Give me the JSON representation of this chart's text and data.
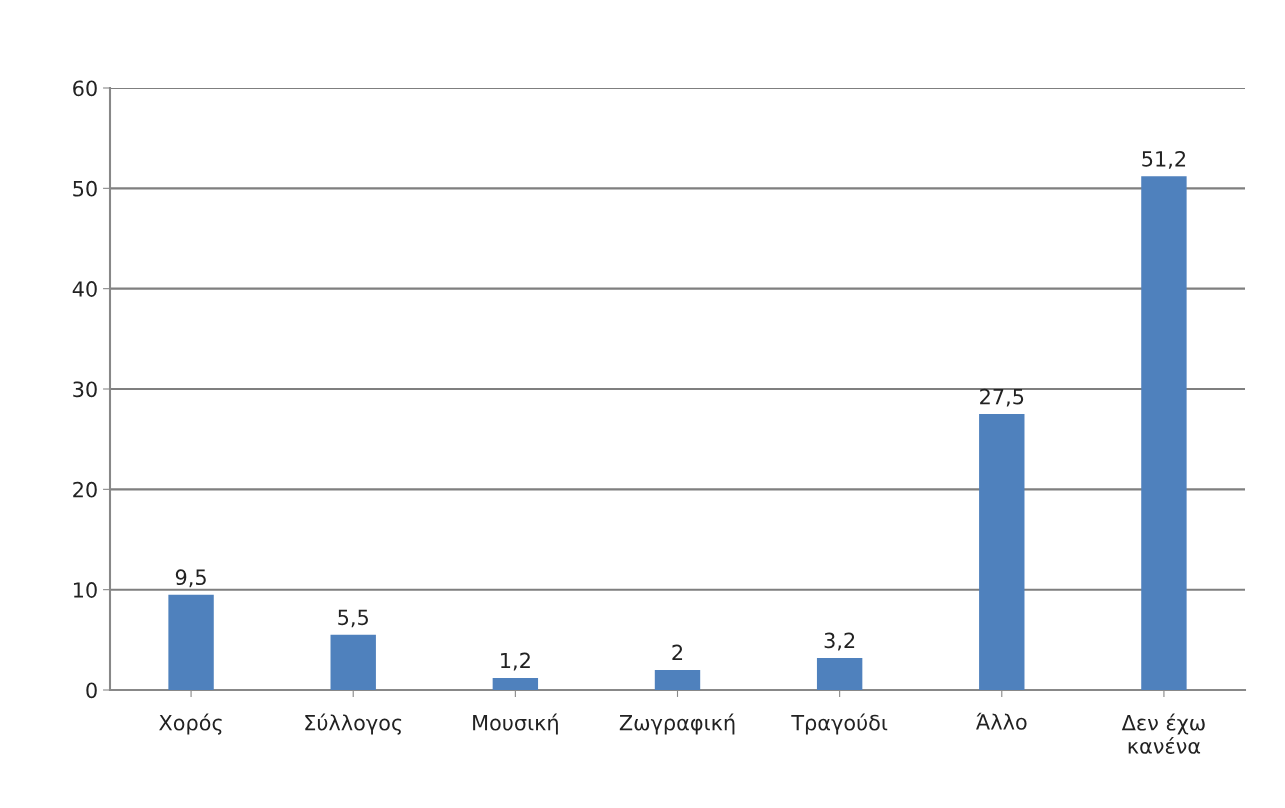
{
  "chart_data": {
    "type": "bar",
    "categories": [
      "Χορός",
      "Σύλλογος",
      "Μουσική",
      "Ζωγραφική",
      "Τραγούδι",
      "Άλλο",
      "Δεν έχω\nκανένα"
    ],
    "values": [
      9.5,
      5.5,
      1.2,
      2,
      3.2,
      27.5,
      51.2
    ],
    "value_labels": [
      "9,5",
      "5,5",
      "1,2",
      "2",
      "3,2",
      "27,5",
      "51,2"
    ],
    "color": "#4f81bd",
    "ylim": [
      0,
      60
    ],
    "yticks": [
      0,
      10,
      20,
      30,
      40,
      50,
      60
    ],
    "grid": "y",
    "legend": false
  }
}
